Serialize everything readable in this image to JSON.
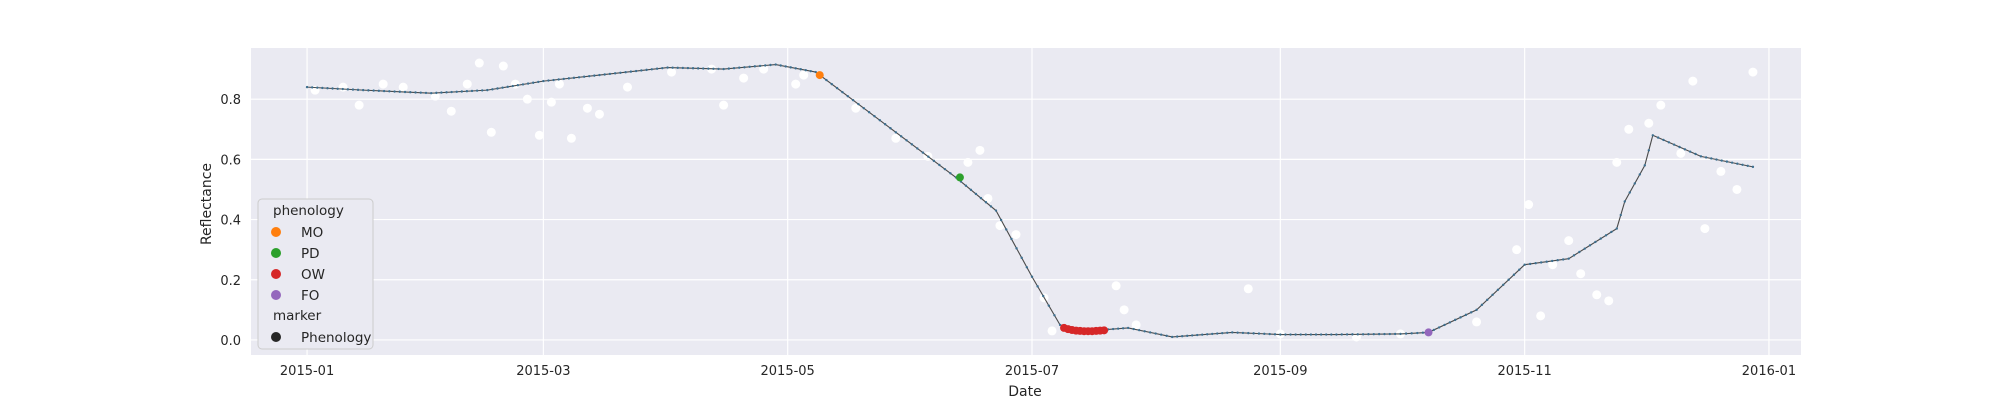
{
  "chart_data": {
    "type": "scatter",
    "xlabel": "Date",
    "ylabel": "Reflectance",
    "xlim": [
      "2014-12-18",
      "2016-01-09"
    ],
    "ylim": [
      -0.05,
      0.97
    ],
    "x_ticks": [
      "2015-01-01",
      "2015-03-01",
      "2015-05-01",
      "2015-07-01",
      "2015-09-01",
      "2015-11-01",
      "2016-01-01"
    ],
    "x_tick_labels": [
      "2015-01",
      "2015-03",
      "2015-05",
      "2015-07",
      "2015-09",
      "2015-11",
      "2016-01"
    ],
    "y_ticks": [
      0.0,
      0.2,
      0.4,
      0.6,
      0.8
    ],
    "y_tick_labels": [
      "0.0",
      "0.2",
      "0.4",
      "0.6",
      "0.8"
    ],
    "grid": true,
    "legend_position": "lower-left",
    "colors": {
      "background": "#eaeaf2",
      "grid": "#ffffff",
      "curve": "#4a4a4a",
      "curve_marker": "#3d6f8f",
      "observations": "#ffffff",
      "MO": "#ff7f0e",
      "PD": "#2ca02c",
      "OW": "#d62728",
      "FO": "#9467bd",
      "marker_legend": "#262626"
    },
    "legend": {
      "hue_title": "phenology",
      "hue_entries": [
        "MO",
        "PD",
        "OW",
        "FO"
      ],
      "marker_title": "marker",
      "marker_entries": [
        "Phenology"
      ]
    },
    "fitted_curve": {
      "x": [
        "2015-01-01",
        "2015-01-15",
        "2015-02-01",
        "2015-02-15",
        "2015-03-01",
        "2015-03-15",
        "2015-04-01",
        "2015-04-15",
        "2015-04-28",
        "2015-05-08",
        "2015-05-20",
        "2015-06-01",
        "2015-06-12",
        "2015-06-22",
        "2015-07-01",
        "2015-07-08",
        "2015-07-15",
        "2015-07-25",
        "2015-08-05",
        "2015-08-20",
        "2015-09-01",
        "2015-09-15",
        "2015-10-01",
        "2015-10-08",
        "2015-10-20",
        "2015-11-01",
        "2015-11-12",
        "2015-11-24",
        "2015-11-26",
        "2015-12-01",
        "2015-12-03",
        "2015-12-15",
        "2015-12-28"
      ],
      "y": [
        0.84,
        0.83,
        0.82,
        0.83,
        0.86,
        0.88,
        0.905,
        0.9,
        0.915,
        0.89,
        0.77,
        0.65,
        0.54,
        0.43,
        0.21,
        0.05,
        0.03,
        0.04,
        0.01,
        0.025,
        0.018,
        0.018,
        0.02,
        0.025,
        0.1,
        0.25,
        0.27,
        0.37,
        0.46,
        0.58,
        0.68,
        0.61,
        0.575
      ]
    },
    "observations": {
      "x": [
        "2015-01-03",
        "2015-01-10",
        "2015-01-14",
        "2015-01-20",
        "2015-01-25",
        "2015-02-02",
        "2015-02-06",
        "2015-02-10",
        "2015-02-13",
        "2015-02-16",
        "2015-02-19",
        "2015-02-22",
        "2015-02-25",
        "2015-02-28",
        "2015-03-03",
        "2015-03-05",
        "2015-03-08",
        "2015-03-12",
        "2015-03-15",
        "2015-03-22",
        "2015-04-02",
        "2015-04-12",
        "2015-04-15",
        "2015-04-20",
        "2015-04-25",
        "2015-05-03",
        "2015-05-05",
        "2015-05-18",
        "2015-05-28",
        "2015-06-05",
        "2015-06-15",
        "2015-06-18",
        "2015-06-20",
        "2015-06-23",
        "2015-06-27",
        "2015-07-04",
        "2015-07-06",
        "2015-07-22",
        "2015-07-24",
        "2015-07-27",
        "2015-08-24",
        "2015-09-01",
        "2015-09-20",
        "2015-10-01",
        "2015-10-20",
        "2015-10-30",
        "2015-11-02",
        "2015-11-05",
        "2015-11-08",
        "2015-11-12",
        "2015-11-15",
        "2015-11-19",
        "2015-11-22",
        "2015-11-24",
        "2015-11-27",
        "2015-12-02",
        "2015-12-05",
        "2015-12-10",
        "2015-12-13",
        "2015-12-16",
        "2015-12-20",
        "2015-12-24",
        "2015-12-28"
      ],
      "y": [
        0.83,
        0.84,
        0.78,
        0.85,
        0.84,
        0.81,
        0.76,
        0.85,
        0.92,
        0.69,
        0.91,
        0.85,
        0.8,
        0.68,
        0.79,
        0.85,
        0.67,
        0.77,
        0.75,
        0.84,
        0.89,
        0.9,
        0.78,
        0.87,
        0.9,
        0.85,
        0.88,
        0.77,
        0.67,
        0.61,
        0.59,
        0.63,
        0.47,
        0.38,
        0.35,
        0.14,
        0.03,
        0.18,
        0.1,
        0.05,
        0.17,
        0.02,
        0.01,
        0.02,
        0.06,
        0.3,
        0.45,
        0.08,
        0.25,
        0.33,
        0.22,
        0.15,
        0.13,
        0.59,
        0.7,
        0.72,
        0.78,
        0.62,
        0.86,
        0.37,
        0.56,
        0.5,
        0.89
      ]
    },
    "phenology_points": [
      {
        "label": "MO",
        "x": "2015-05-09",
        "y": 0.88
      },
      {
        "label": "PD",
        "x": "2015-06-13",
        "y": 0.54
      },
      {
        "label": "OW",
        "x": "2015-07-09",
        "y": 0.04
      },
      {
        "label": "OW",
        "x": "2015-07-10",
        "y": 0.036
      },
      {
        "label": "OW",
        "x": "2015-07-11",
        "y": 0.033
      },
      {
        "label": "OW",
        "x": "2015-07-12",
        "y": 0.031
      },
      {
        "label": "OW",
        "x": "2015-07-13",
        "y": 0.03
      },
      {
        "label": "OW",
        "x": "2015-07-14",
        "y": 0.029
      },
      {
        "label": "OW",
        "x": "2015-07-15",
        "y": 0.029
      },
      {
        "label": "OW",
        "x": "2015-07-16",
        "y": 0.029
      },
      {
        "label": "OW",
        "x": "2015-07-17",
        "y": 0.03
      },
      {
        "label": "OW",
        "x": "2015-07-18",
        "y": 0.031
      },
      {
        "label": "OW",
        "x": "2015-07-19",
        "y": 0.032
      },
      {
        "label": "FO",
        "x": "2015-10-08",
        "y": 0.025
      }
    ]
  }
}
